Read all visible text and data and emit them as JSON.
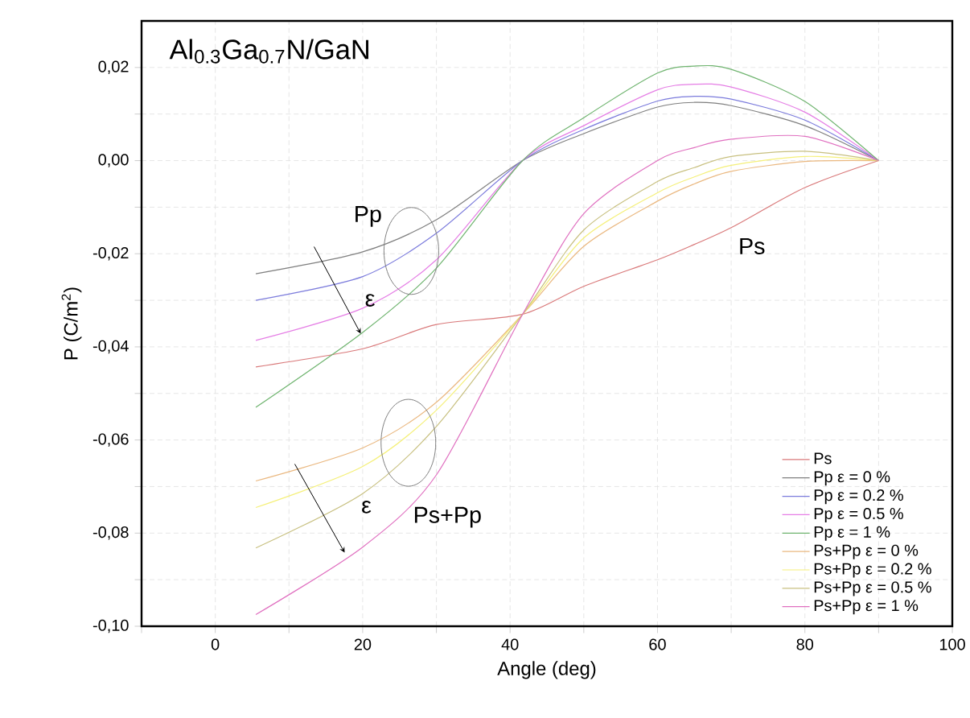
{
  "chart_data": {
    "type": "line",
    "title": "Al$_{0.3}$Ga$_{0.7}$N/GaN",
    "xlabel": "Angle (deg)",
    "ylabel": "P (C/m$^{2}$)",
    "xlim": [
      -10,
      100
    ],
    "ylim": [
      -0.1,
      0.03
    ],
    "xticks": [
      {
        "value": -10,
        "label": null
      },
      0,
      {
        "value": 10,
        "label": null
      },
      20,
      {
        "value": 30,
        "label": null
      },
      40,
      {
        "value": 50,
        "label": null
      },
      60,
      {
        "value": 70,
        "label": null
      },
      80,
      {
        "value": 90,
        "label": null
      },
      100
    ],
    "yticks": [
      {
        "value": -0.1,
        "label": "-0,10"
      },
      {
        "value": -0.09,
        "label": null
      },
      {
        "value": -0.08,
        "label": "-0,08"
      },
      {
        "value": -0.07,
        "label": null
      },
      {
        "value": -0.06,
        "label": "-0,06"
      },
      {
        "value": -0.05,
        "label": null
      },
      {
        "value": -0.04,
        "label": "-0,04"
      },
      {
        "value": -0.03,
        "label": null
      },
      {
        "value": -0.02,
        "label": "-0,02"
      },
      {
        "value": -0.01,
        "label": null
      },
      {
        "value": 0,
        "label": "0,00"
      },
      {
        "value": 0.01,
        "label": null
      },
      {
        "value": 0.02,
        "label": "0,02"
      }
    ],
    "grid": true,
    "legend": "bottom right",
    "marker": "none",
    "line_style": "solid",
    "x": [
      5.5,
      20,
      30,
      41.7,
      50,
      60,
      65,
      70,
      80,
      90
    ],
    "series": [
      {
        "name": "Ps",
        "color": "#d9797a",
        "values": [
          -0.0443,
          -0.0404,
          -0.0352,
          -0.033,
          -0.027,
          -0.0213,
          -0.018,
          -0.0144,
          -0.0058,
          0
        ]
      },
      {
        "name": "Pp ε = 0 %",
        "color": "#7f7f7f",
        "values": [
          -0.0243,
          -0.0196,
          -0.0127,
          0,
          0.0058,
          0.0115,
          0.0125,
          0.0118,
          0.0075,
          0
        ]
      },
      {
        "name": "Pp ε = 0.2 %",
        "color": "#7b7bdc",
        "values": [
          -0.03,
          -0.0249,
          -0.0156,
          0,
          0.0067,
          0.0128,
          0.0138,
          0.0132,
          0.0087,
          0
        ]
      },
      {
        "name": "Pp ε = 0.5 %",
        "color": "#e57ee5",
        "values": [
          -0.0386,
          -0.0317,
          -0.0213,
          0,
          0.0075,
          0.0152,
          0.0164,
          0.0158,
          0.0104,
          0
        ]
      },
      {
        "name": "Pp ε = 1 %",
        "color": "#6fb46f",
        "values": [
          -0.053,
          -0.0369,
          -0.0231,
          0,
          0.0092,
          0.0188,
          0.0203,
          0.0196,
          0.0127,
          0
        ]
      },
      {
        "name": "Ps+Pp ε = 0 %",
        "color": "#eab880",
        "values": [
          -0.0688,
          -0.0617,
          -0.0519,
          -0.033,
          -0.0184,
          -0.0087,
          -0.005,
          -0.0023,
          -0.0002,
          0
        ]
      },
      {
        "name": "Ps+Pp ε = 0.2 %",
        "color": "#f5f07a",
        "values": [
          -0.0745,
          -0.0657,
          -0.0536,
          -0.033,
          -0.0166,
          -0.0069,
          -0.0035,
          -0.001,
          0.0009,
          0
        ]
      },
      {
        "name": "Ps+Pp ε = 0.5 %",
        "color": "#c8c080",
        "values": [
          -0.0832,
          -0.0715,
          -0.0571,
          -0.033,
          -0.0149,
          -0.0045,
          -0.0015,
          0.0009,
          0.002,
          0
        ]
      },
      {
        "name": "Ps+Pp ε = 1 %",
        "color": "#e070c0",
        "values": [
          -0.0975,
          -0.083,
          -0.0675,
          -0.033,
          -0.0114,
          0,
          0.0028,
          0.0046,
          0.0052,
          0
        ]
      }
    ],
    "annotations": [
      "Pp",
      "ε",
      "Ps",
      "ε",
      "Ps+Pp"
    ]
  }
}
